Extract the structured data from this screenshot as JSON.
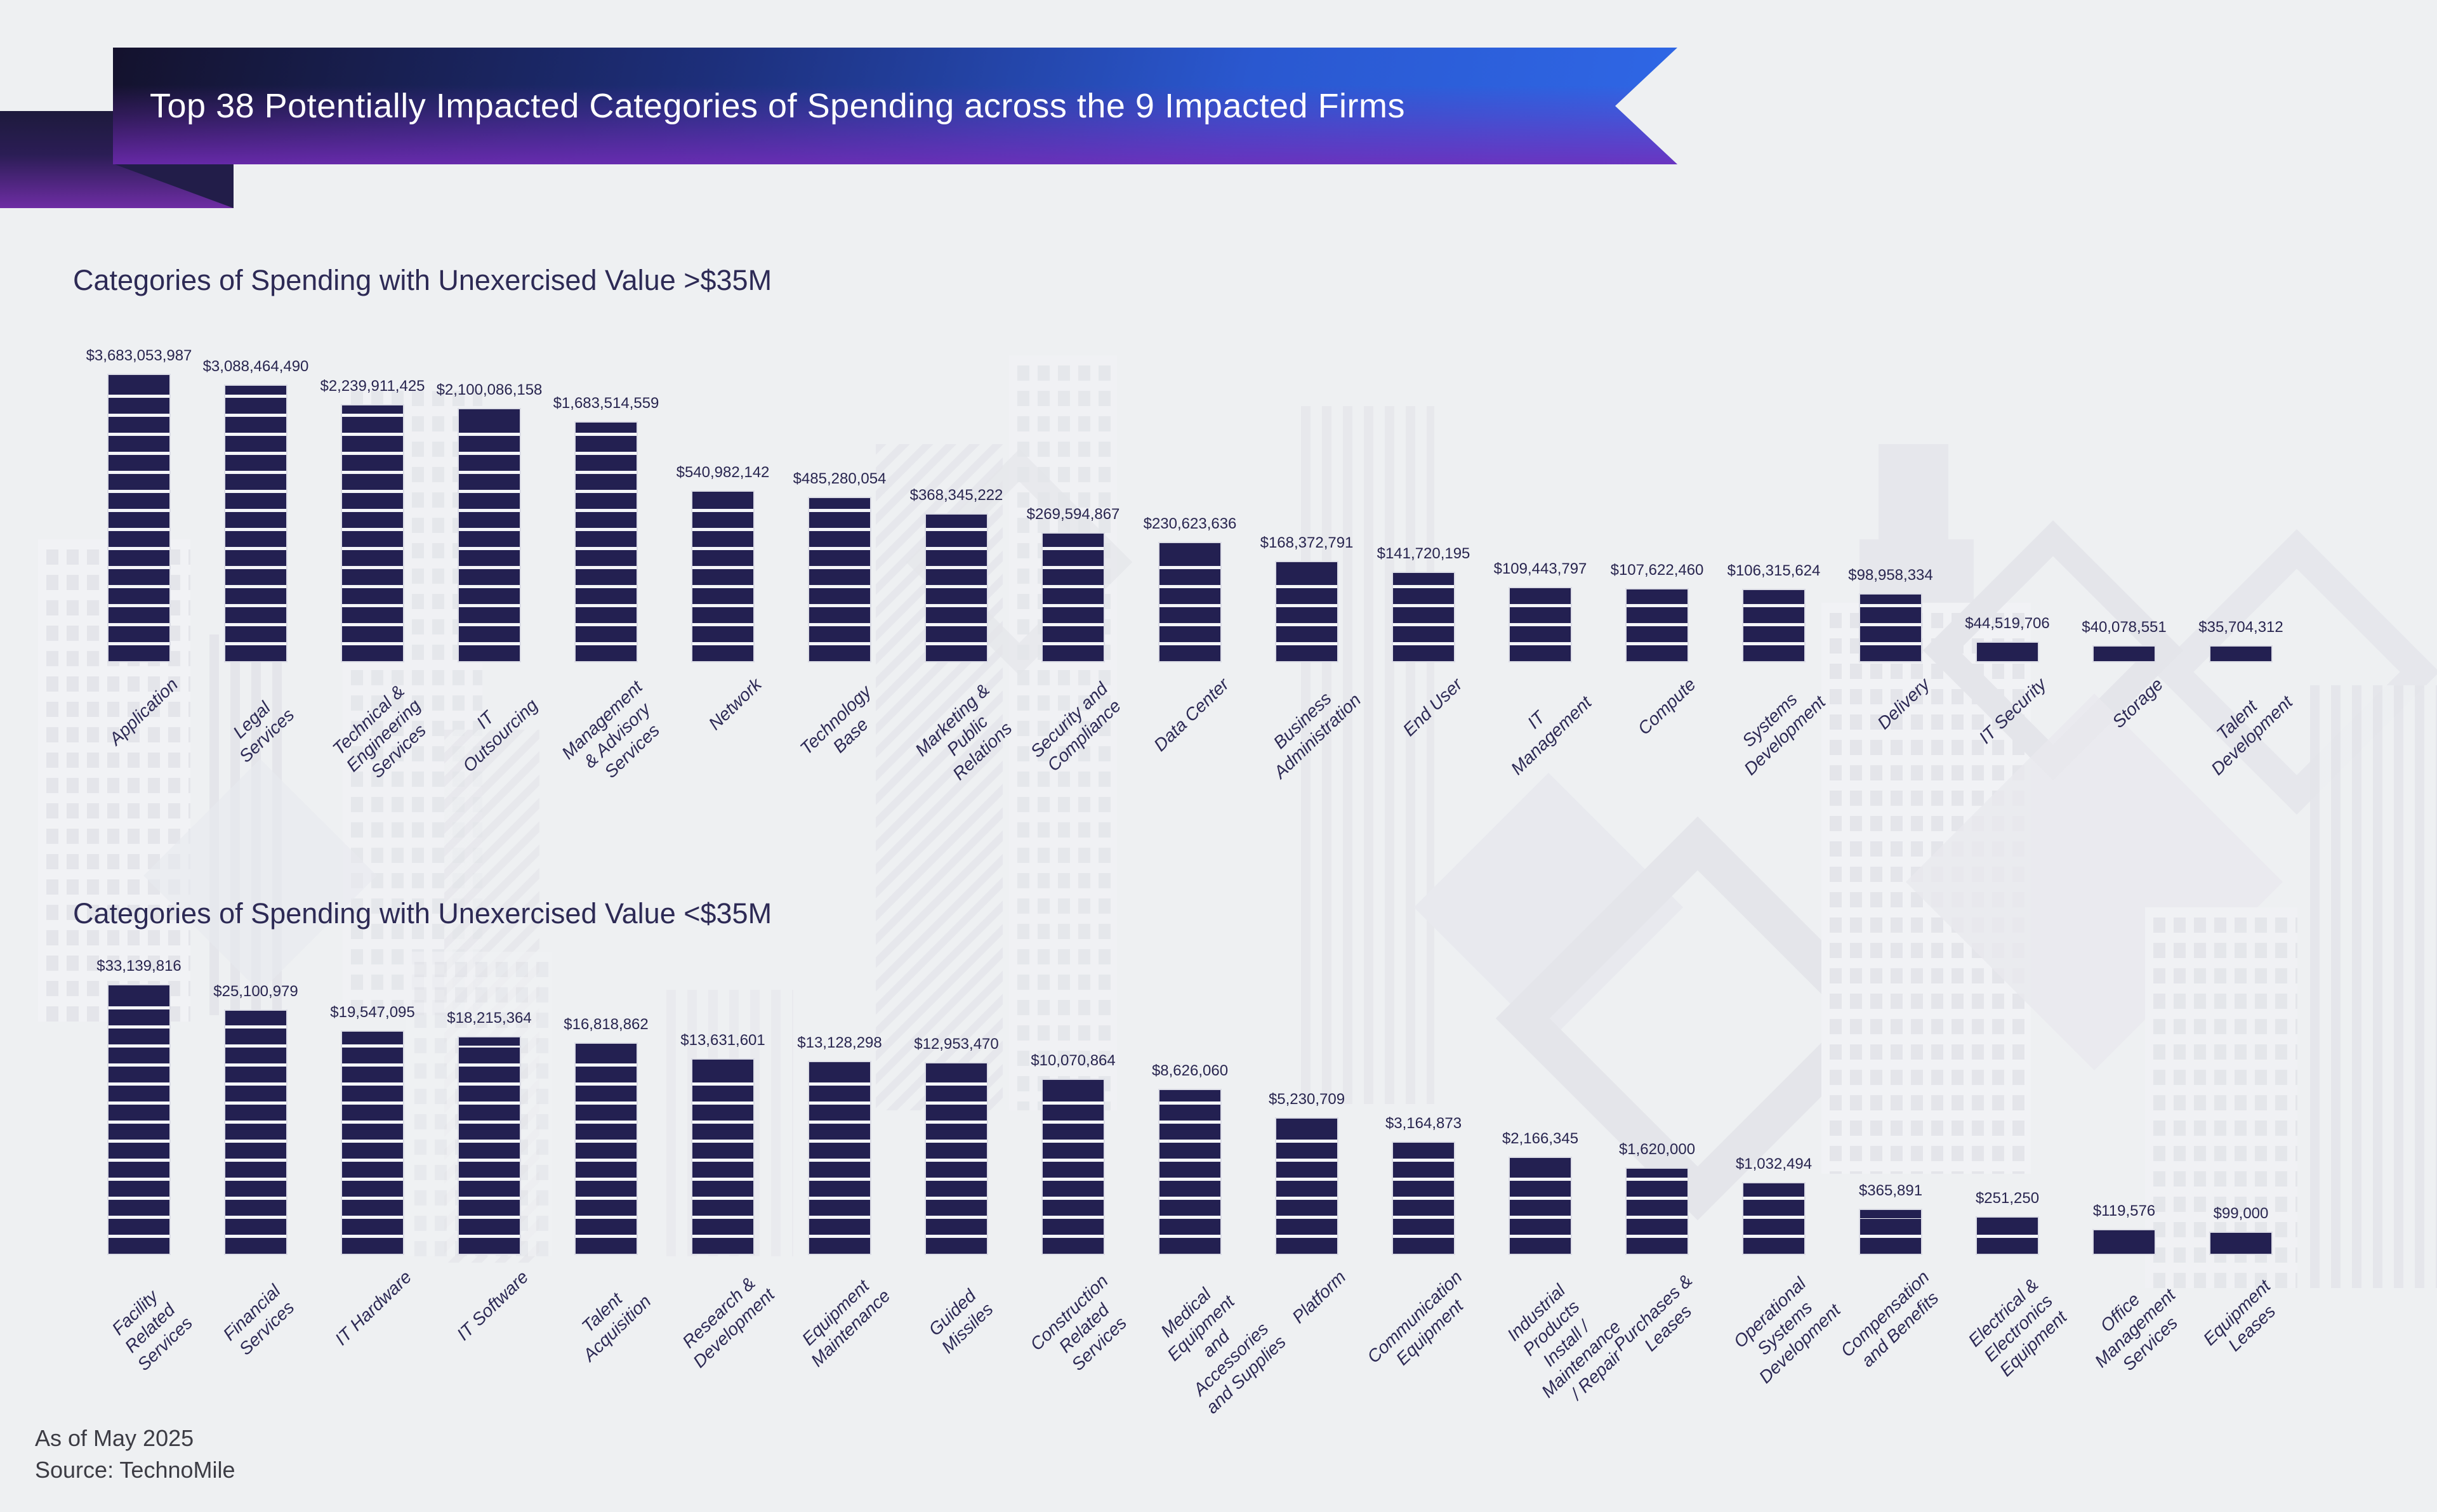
{
  "header": {
    "title": "Top 38 Potentially Impacted Categories of Spending across the 9 Impacted Firms"
  },
  "chart_data": [
    {
      "type": "bar",
      "title": "Categories of Spending with Unexercised Value >$35M",
      "xlabel": "",
      "ylabel": "",
      "grid": false,
      "legend": "none",
      "bar_style": "segmented building floors, navy",
      "categories": [
        "Application",
        "Legal Services",
        "Technical & Engineering\nServices",
        "IT Outsourcing",
        "Management & Advisory\nServices",
        "Network",
        "Technology Base",
        "Marketing & Public Relations",
        "Security and Compliance",
        "Data Center",
        "Business Administration",
        "End User",
        "IT Management",
        "Compute",
        "Systems Development",
        "Delivery",
        "IT Security",
        "Storage",
        "Talent Development"
      ],
      "values": [
        3683053987,
        3088464490,
        2239911425,
        2100086158,
        1683514559,
        540982142,
        485280054,
        368345222,
        269594867,
        230623636,
        168372791,
        141720195,
        109443797,
        107622460,
        106315624,
        98958334,
        44519706,
        40078551,
        35704312
      ],
      "value_labels": [
        "$3,683,053,987",
        "$3,088,464,490",
        "$2,239,911,425",
        "$2,100,086,158",
        "$1,683,514,559",
        "$540,982,142",
        "$485,280,054",
        "$368,345,222",
        "$269,594,867",
        "$230,623,636",
        "$168,372,791",
        "$141,720,195",
        "$109,443,797",
        "$107,622,460",
        "$106,315,624",
        "$98,958,334",
        "$44,519,706",
        "$40,078,551",
        "$35,704,312"
      ]
    },
    {
      "type": "bar",
      "title": "Categories of Spending with Unexercised Value <$35M",
      "xlabel": "",
      "ylabel": "",
      "grid": false,
      "legend": "none",
      "bar_style": "segmented building floors, navy",
      "categories": [
        "Facility Related\nServices",
        "Financial Services",
        "IT Hardware",
        "IT Software",
        "Talent Acquisition",
        "Research & Development",
        "Equipment Maintenance",
        "Guided Missiles",
        "Construction Related\nServices",
        "Medical Equipment and\nAccessories and Supplies",
        "Platform",
        "Communication Equipment",
        "Industrial Products Install /\nMaintenance / Repair",
        "Purchases & Leases",
        "Operational Systems\nDevelopment",
        "Compensation and Benefits",
        "Electrical & Electronics\nEquipment",
        "Office Management\nServices",
        "Equipment Leases"
      ],
      "values": [
        33139816,
        25100979,
        19547095,
        18215364,
        16818862,
        13631601,
        13128298,
        12953470,
        10070864,
        8626060,
        5230709,
        3164873,
        2166345,
        1620000,
        1032494,
        365891,
        251250,
        119576,
        99000
      ],
      "value_labels": [
        "$33,139,816",
        "$25,100,979",
        "$19,547,095",
        "$18,215,364",
        "$16,818,862",
        "$13,631,601",
        "$13,128,298",
        "$12,953,470",
        "$10,070,864",
        "$8,626,060",
        "$5,230,709",
        "$3,164,873",
        "$2,166,345",
        "$1,620,000",
        "$1,032,494",
        "$365,891",
        "$251,250",
        "$119,576",
        "$99,000"
      ]
    }
  ],
  "footer": {
    "as_of": "As of May 2025",
    "source": "Source: TechnoMile"
  },
  "colors": {
    "background": "#eef0f2",
    "bar_fill": "#232051",
    "bar_gap": "#f4f5f8",
    "navy_text": "#2d2a55",
    "banner_dark": "#14122d",
    "banner_blue": "#2f67e6",
    "banner_purple": "#742cba",
    "footer_text": "#3c3c44"
  }
}
